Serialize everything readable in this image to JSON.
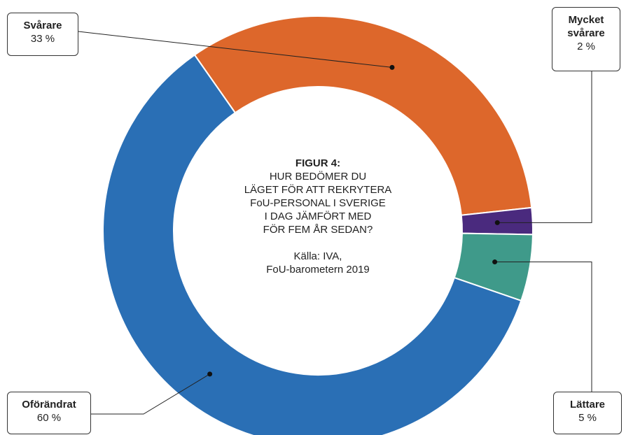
{
  "chart_data": {
    "type": "donut",
    "title": "FIGUR 4:",
    "subtitle": [
      "HUR BEDÖMER DU",
      "LÄGET FÖR ATT REKRYTERA",
      "FoU-PERSONAL I SVERIGE",
      "I DAG JÄMFÖRT MED",
      "FÖR FEM ÅR SEDAN?"
    ],
    "source": [
      "Källa: IVA,",
      "FoU-barometern 2019"
    ],
    "categories": [
      "Svårare",
      "Mycket svårare",
      "Lättare",
      "Oförändrat"
    ],
    "values": [
      33,
      2,
      5,
      60
    ],
    "value_labels": [
      "33 %",
      "2 %",
      "5 %",
      "60 %"
    ],
    "colors": [
      "#dd672b",
      "#4a2a7e",
      "#3f9a8a",
      "#2a6fb5"
    ]
  }
}
